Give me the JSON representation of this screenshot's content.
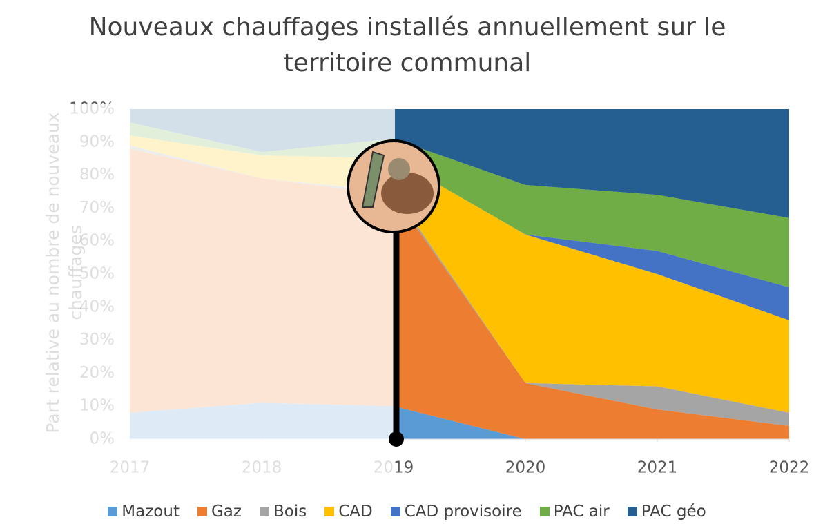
{
  "chart_data": {
    "type": "stacked_area_percent",
    "title": "Nouveaux chauffages installés annuellement sur le territoire communal",
    "y_label": "Part relative au nombre de nouveaux chauffages",
    "x": [
      2017,
      2018,
      2019,
      2020,
      2021,
      2022
    ],
    "xlim": [
      2017,
      2022
    ],
    "xticks": [
      2017,
      2018,
      2019,
      2020,
      2021,
      2022
    ],
    "ylim": [
      0,
      100
    ],
    "yticks": [
      {
        "value": 0,
        "label": "0%"
      },
      {
        "value": 10,
        "label": "10%"
      },
      {
        "value": 20,
        "label": "20%"
      },
      {
        "value": 30,
        "label": "30%"
      },
      {
        "value": 40,
        "label": "40%"
      },
      {
        "value": 50,
        "label": "50%"
      },
      {
        "value": 60,
        "label": "60%"
      },
      {
        "value": 70,
        "label": "70%"
      },
      {
        "value": 80,
        "label": "80%"
      },
      {
        "value": 90,
        "label": "90%"
      },
      {
        "value": 100,
        "label": "100%"
      }
    ],
    "legend": "bottom",
    "series": [
      {
        "name": "Mazout",
        "color": "#5b9bd5",
        "values": [
          8,
          11,
          10,
          0,
          0,
          0
        ]
      },
      {
        "name": "Gaz",
        "color": "#ed7d31",
        "values": [
          80,
          68,
          64,
          17,
          9,
          4
        ]
      },
      {
        "name": "Bois",
        "color": "#a5a5a5",
        "values": [
          1,
          0,
          1,
          0,
          7,
          4
        ]
      },
      {
        "name": "CAD",
        "color": "#ffc000",
        "values": [
          3,
          7,
          10,
          45,
          34,
          28
        ]
      },
      {
        "name": "CAD provisoire",
        "color": "#4472c4",
        "values": [
          0,
          0,
          0,
          0,
          7,
          10
        ]
      },
      {
        "name": "PAC air",
        "color": "#70ad47",
        "values": [
          4,
          1,
          6,
          15,
          17,
          21
        ]
      },
      {
        "name": "PAC géo",
        "color": "#255e91",
        "values": [
          4,
          13,
          9,
          23,
          26,
          33
        ]
      }
    ]
  }
}
